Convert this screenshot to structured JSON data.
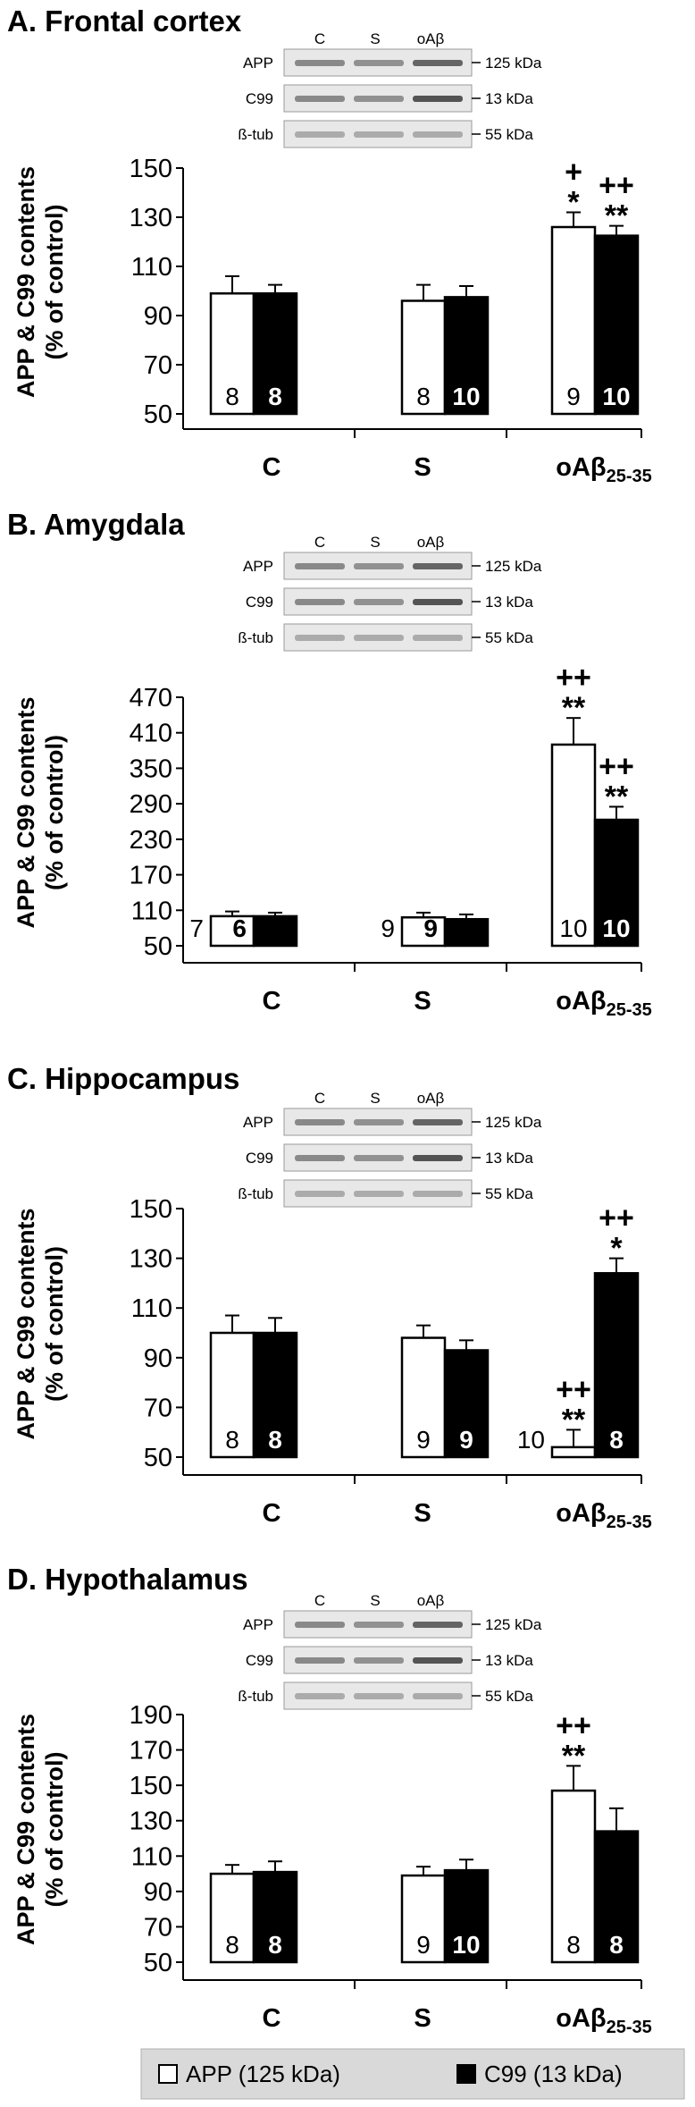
{
  "colors": {
    "app": "#ffffff",
    "c99": "#000000",
    "legend_bg": "#d9d9d9"
  },
  "legend": {
    "app_label": "APP (125 kDa)",
    "c99_label": "C99 (13 kDa)"
  },
  "chart_data": [
    {
      "type": "bar",
      "title": "A. Frontal cortex",
      "ylabel": [
        "APP & C99 contents",
        "(% of control)"
      ],
      "ylim": [
        50,
        150
      ],
      "yticks": [
        50,
        70,
        90,
        110,
        130,
        150
      ],
      "categories": [
        "C",
        "S",
        "oAβ"
      ],
      "category_subscript": [
        "",
        "",
        "25-35"
      ],
      "blot": {
        "lanes": [
          "C",
          "S",
          "oAβ"
        ],
        "rows": [
          {
            "label": "APP",
            "kda": "125 kDa"
          },
          {
            "label": "C99",
            "kda": "13 kDa"
          },
          {
            "label": "ß-tub",
            "kda": "55 kDa"
          }
        ]
      },
      "series": [
        {
          "name": "APP (125 kDa)",
          "values": [
            99,
            96,
            126
          ],
          "errors": [
            7,
            6.5,
            6
          ],
          "n": [
            "8",
            "8",
            "9"
          ],
          "sig": [
            "",
            "",
            "+\n*"
          ]
        },
        {
          "name": "C99 (13 kDa)",
          "values": [
            99,
            97.5,
            122.5
          ],
          "errors": [
            3.5,
            4.5,
            4
          ],
          "n": [
            "8",
            "10",
            "10"
          ],
          "sig": [
            "",
            "",
            "++\n**"
          ]
        }
      ]
    },
    {
      "type": "bar",
      "title": "B. Amygdala",
      "ylabel": [
        "APP & C99 contents",
        "(% of control)"
      ],
      "ylim": [
        50,
        470
      ],
      "yticks": [
        50,
        110,
        170,
        230,
        290,
        350,
        410,
        470
      ],
      "categories": [
        "C",
        "S",
        "oAβ"
      ],
      "category_subscript": [
        "",
        "",
        "25-35"
      ],
      "blot": {
        "lanes": [
          "C",
          "S",
          "oAβ"
        ],
        "rows": [
          {
            "label": "APP",
            "kda": "125 kDa"
          },
          {
            "label": "C99",
            "kda": "13 kDa"
          },
          {
            "label": "ß-tub",
            "kda": "55 kDa"
          }
        ]
      },
      "series": [
        {
          "name": "APP (125 kDa)",
          "values": [
            100,
            98,
            390
          ],
          "errors": [
            8,
            8,
            45
          ],
          "n": [
            "7",
            "9",
            "10"
          ],
          "sig": [
            "",
            "",
            "++\n**"
          ]
        },
        {
          "name": "C99 (13 kDa)",
          "values": [
            100,
            95,
            263
          ],
          "errors": [
            6,
            8,
            22
          ],
          "n": [
            "6",
            "9",
            "10"
          ],
          "sig": [
            "",
            "",
            "++\n**"
          ]
        }
      ]
    },
    {
      "type": "bar",
      "title": "C. Hippocampus",
      "ylabel": [
        "APP & C99 contents",
        "(% of control)"
      ],
      "ylim": [
        50,
        150
      ],
      "yticks": [
        50,
        70,
        90,
        110,
        130,
        150
      ],
      "categories": [
        "C",
        "S",
        "oAβ"
      ],
      "category_subscript": [
        "",
        "",
        "25-35"
      ],
      "blot": {
        "lanes": [
          "C",
          "S",
          "oAβ"
        ],
        "rows": [
          {
            "label": "APP",
            "kda": "125 kDa"
          },
          {
            "label": "C99",
            "kda": "13 kDa"
          },
          {
            "label": "ß-tub",
            "kda": "55 kDa"
          }
        ]
      },
      "series": [
        {
          "name": "APP (125 kDa)",
          "values": [
            100,
            98,
            54
          ],
          "errors": [
            7,
            5,
            7
          ],
          "n": [
            "8",
            "9",
            "10"
          ],
          "sig": [
            "",
            "",
            "++\n**"
          ]
        },
        {
          "name": "C99 (13 kDa)",
          "values": [
            100,
            93,
            124
          ],
          "errors": [
            6,
            4,
            6
          ],
          "n": [
            "8",
            "9",
            "8"
          ],
          "sig": [
            "",
            "",
            "++\n*"
          ]
        }
      ]
    },
    {
      "type": "bar",
      "title": "D. Hypothalamus",
      "ylabel": [
        "APP & C99 contents",
        "(% of control)"
      ],
      "ylim": [
        50,
        190
      ],
      "yticks": [
        50,
        70,
        90,
        110,
        130,
        150,
        170,
        190
      ],
      "categories": [
        "C",
        "S",
        "oAβ"
      ],
      "category_subscript": [
        "",
        "",
        "25-35"
      ],
      "blot": {
        "lanes": [
          "C",
          "S",
          "oAβ"
        ],
        "rows": [
          {
            "label": "APP",
            "kda": "125 kDa"
          },
          {
            "label": "C99",
            "kda": "13 kDa"
          },
          {
            "label": "ß-tub",
            "kda": "55 kDa"
          }
        ]
      },
      "series": [
        {
          "name": "APP (125 kDa)",
          "values": [
            100,
            99,
            147
          ],
          "errors": [
            5,
            5,
            14
          ],
          "n": [
            "8",
            "9",
            "8"
          ],
          "sig": [
            "",
            "",
            "++\n**"
          ]
        },
        {
          "name": "C99 (13 kDa)",
          "values": [
            101,
            102,
            124
          ],
          "errors": [
            6,
            6,
            13
          ],
          "n": [
            "8",
            "10",
            "8"
          ],
          "sig": [
            "",
            "",
            ""
          ]
        }
      ]
    }
  ]
}
